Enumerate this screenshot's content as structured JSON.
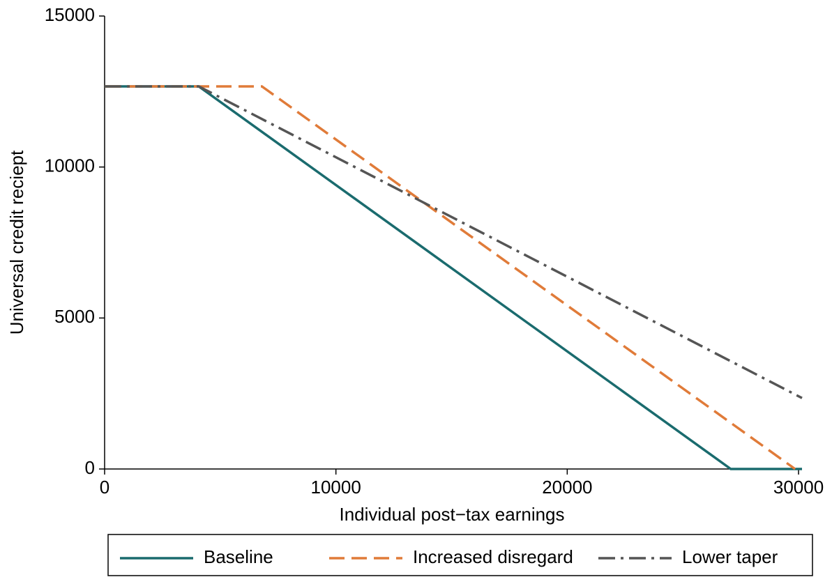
{
  "chart_data": {
    "type": "line",
    "xlabel": "Individual post−tax earnings",
    "ylabel": "Universal credit reciept",
    "xlim": [
      0,
      30150
    ],
    "xticks": [
      0,
      10000,
      20000,
      30000
    ],
    "ylim": [
      0,
      15000
    ],
    "yticks": [
      0,
      5000,
      10000,
      15000
    ],
    "grid": false,
    "legend": "bottom",
    "series": [
      {
        "name": "Baseline",
        "color": "#1a6b6e",
        "line_style": "solid",
        "x": [
          0,
          4070,
          27070,
          30150
        ],
        "values": [
          12670,
          12670,
          0,
          0
        ]
      },
      {
        "name": "Increased disregard",
        "color": "#e07b39",
        "line_style": "dashed",
        "x": [
          0,
          6800,
          29850
        ],
        "values": [
          12670,
          12670,
          0
        ]
      },
      {
        "name": "Lower taper",
        "color": "#555555",
        "line_style": "dashdot",
        "x": [
          0,
          4070,
          30150
        ],
        "values": [
          12670,
          12670,
          2350
        ]
      }
    ]
  }
}
